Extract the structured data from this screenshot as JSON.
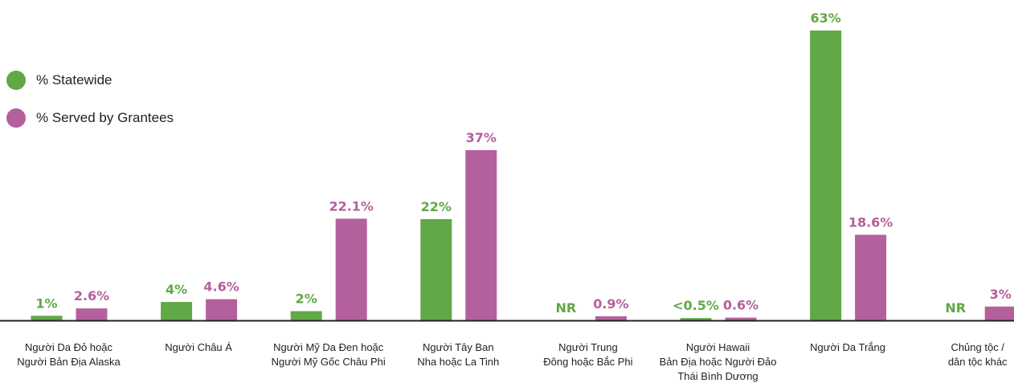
{
  "chart_data": {
    "type": "bar",
    "categories": [
      [
        "Người Da Đỏ hoặc",
        "Người Bản Địa Alaska"
      ],
      [
        "Người Châu Á"
      ],
      [
        "Người Mỹ Da Đen hoặc",
        "Người Mỹ Gốc Châu Phi"
      ],
      [
        "Người Tây Ban",
        "Nha hoặc La Tinh"
      ],
      [
        "Người Trung",
        "Đông hoặc Bắc Phi"
      ],
      [
        "Người Hawaii",
        "Bản Địa hoặc Người Đảo",
        "Thái Bình Dương"
      ],
      [
        "Người Da Trắng"
      ],
      [
        "Chủng tộc /",
        "dân tộc khác"
      ]
    ],
    "series": [
      {
        "name": "% Statewide",
        "color": "#61a847",
        "values": [
          1,
          4,
          2,
          22,
          0,
          0.5,
          63,
          0
        ],
        "labels": [
          "1%",
          "4%",
          "2%",
          "22%",
          "NR",
          "<0.5%",
          "63%",
          "NR"
        ]
      },
      {
        "name": "% Served by Grantees",
        "color": "#b4609c",
        "values": [
          2.6,
          4.6,
          22.1,
          37,
          0.9,
          0.6,
          18.6,
          3
        ],
        "labels": [
          "2.6%",
          "4.6%",
          "22.1%",
          "37%",
          "0.9%",
          "0.6%",
          "18.6%",
          "3%"
        ]
      }
    ],
    "ylim": [
      0,
      63
    ],
    "legend_position": "left",
    "grid": false
  }
}
